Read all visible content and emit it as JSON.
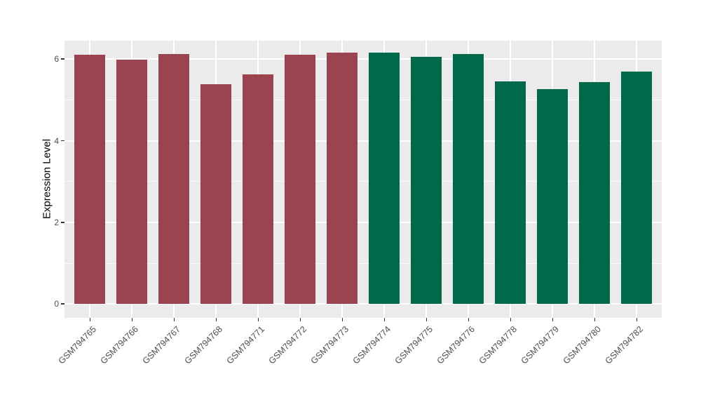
{
  "chart_data": {
    "type": "bar",
    "title": "",
    "xlabel": "",
    "ylabel": "Expression Level",
    "categories": [
      "GSM794765",
      "GSM794766",
      "GSM794767",
      "GSM794768",
      "GSM794771",
      "GSM794772",
      "GSM794773",
      "GSM794774",
      "GSM794775",
      "GSM794776",
      "GSM794778",
      "GSM794779",
      "GSM794780",
      "GSM794782"
    ],
    "values": [
      6.1,
      5.99,
      6.13,
      5.38,
      5.63,
      6.11,
      6.16,
      6.16,
      6.05,
      6.12,
      5.45,
      5.26,
      5.44,
      5.7
    ],
    "bar_colors": [
      "#9A4450",
      "#9A4450",
      "#9A4450",
      "#9A4450",
      "#9A4450",
      "#9A4450",
      "#9A4450",
      "#00684B",
      "#00684B",
      "#00684B",
      "#00684B",
      "#00684B",
      "#00684B",
      "#00684B"
    ],
    "y_ticks": [
      0,
      2,
      4,
      6
    ],
    "y_minor_ticks": [
      1,
      3,
      5
    ],
    "ylim": [
      -0.34,
      6.45
    ],
    "grid": true,
    "legend_position": "none",
    "style": {
      "panel_background": "#EBEBEB",
      "grid_color": "#FFFFFF",
      "tick_label_color": "#4D4D4D",
      "axis_title_color": "#000000",
      "tick_mark_color": "#333333",
      "group1_color": "#9A4450",
      "group2_color": "#00684B"
    }
  }
}
